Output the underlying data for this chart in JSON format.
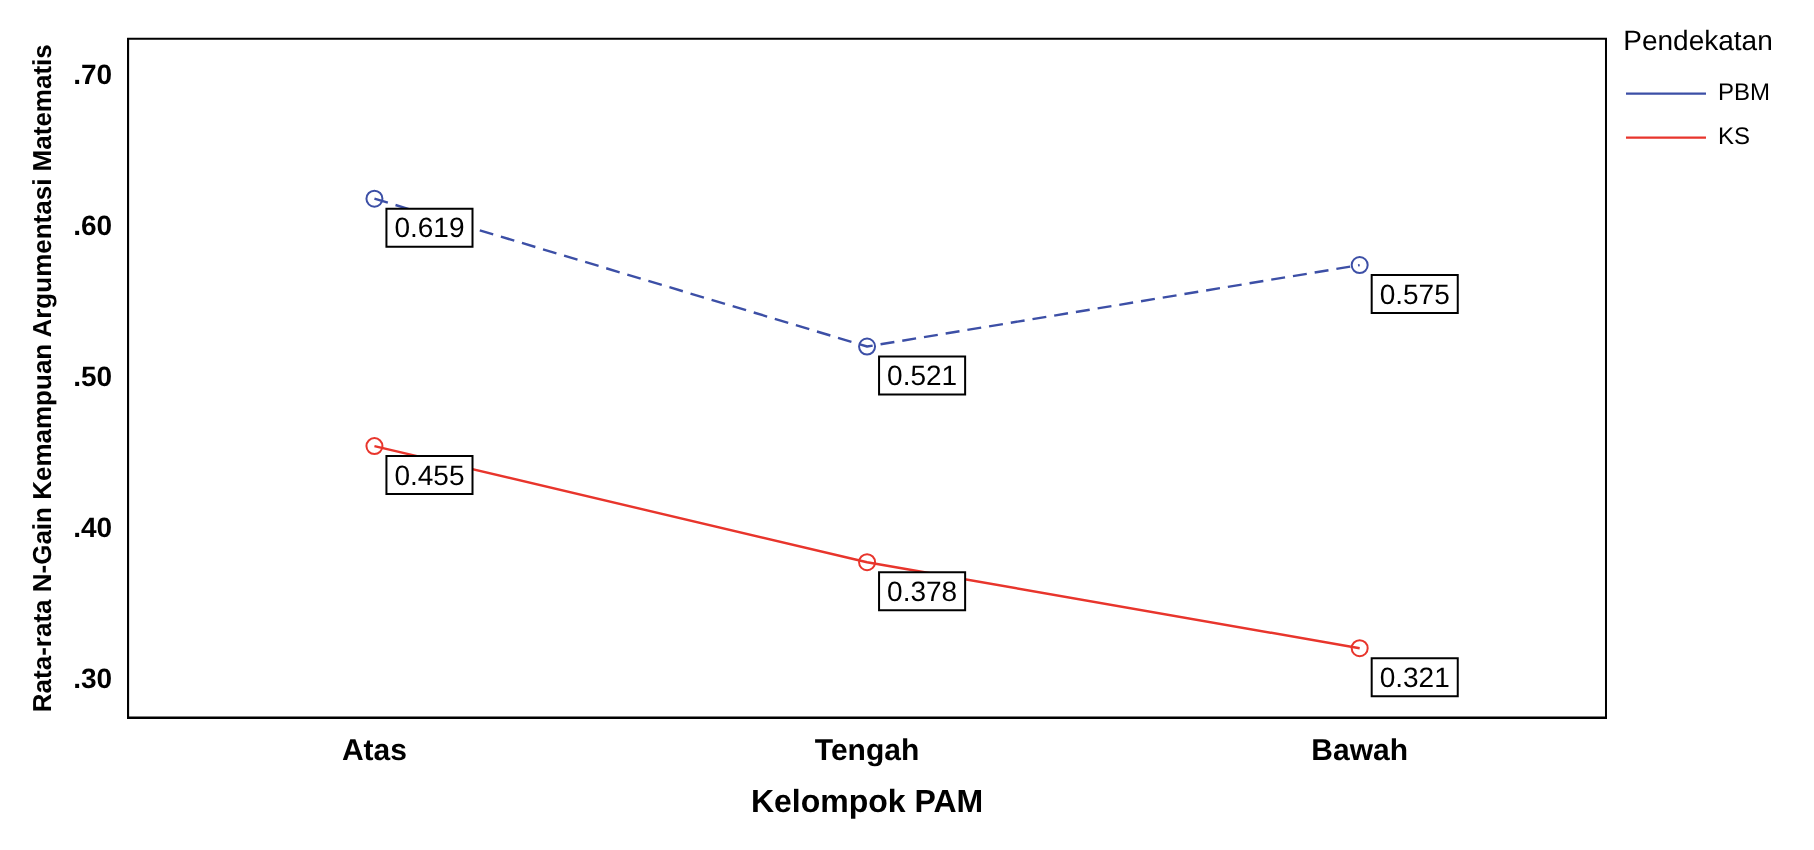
{
  "chart_data": {
    "type": "line",
    "xlabel": "Kelompok PAM",
    "ylabel": "Rata-rata N-Gain Kemampuan Argumentasi Matematis",
    "legend_title": "Pendekatan",
    "categories": [
      "Atas",
      "Tengah",
      "Bawah"
    ],
    "series": [
      {
        "name": "PBM",
        "color": "#3c4fa6",
        "values": [
          0.619,
          0.521,
          0.575
        ],
        "line_style": "dashed"
      },
      {
        "name": "KS",
        "color": "#e8352c",
        "values": [
          0.455,
          0.378,
          0.321
        ],
        "line_style": "solid"
      }
    ],
    "ylim": [
      0.275,
      0.725
    ],
    "yticks": [
      {
        "value": 0.3,
        "label": ".30"
      },
      {
        "value": 0.4,
        "label": ".40"
      },
      {
        "value": 0.5,
        "label": ".50"
      },
      {
        "value": 0.6,
        "label": ".60"
      },
      {
        "value": 0.7,
        "label": ".70"
      }
    ],
    "grid": false,
    "legend": "top right",
    "marker": "circle",
    "data_labels": true
  }
}
